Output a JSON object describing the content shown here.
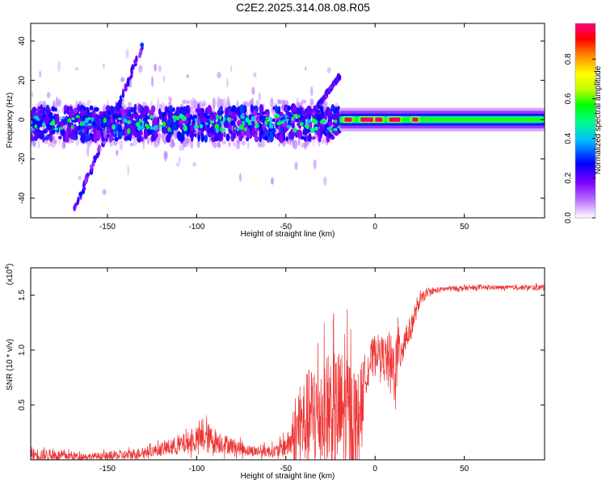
{
  "figure_title": "C2E2.2025.314.08.08.R05",
  "chart_data": [
    {
      "type": "heatmap",
      "title": "",
      "xlabel": "Height of straight line (km)",
      "ylabel": "Frequency (Hz)",
      "xlim": [
        -193,
        95
      ],
      "ylim": [
        -50,
        49
      ],
      "xticks": [
        -150,
        -100,
        -50,
        0,
        50
      ],
      "yticks": [
        -40,
        -20,
        0,
        20,
        40
      ],
      "colorbar": {
        "label": "Normalized spectral amplitude",
        "range": [
          0,
          0.98
        ],
        "ticks": [
          "0.0",
          "0.2",
          "0.4",
          "0.6",
          "0.8"
        ],
        "tick_values": [
          0,
          0.2,
          0.4,
          0.6,
          0.8
        ],
        "colors": [
          "#ffffff",
          "#c080ff",
          "#8000ff",
          "#0000ff",
          "#00c0ff",
          "#00ff80",
          "#00ff00",
          "#c0ff00",
          "#ffff00",
          "#ff8000",
          "#ff0000",
          "#ff0080"
        ]
      },
      "features": [
        {
          "kind": "scattered_band",
          "x_range": [
            -193,
            -20
          ],
          "freq_center": -2,
          "freq_halfwidth": 8,
          "peak_amplitude": 0.55
        },
        {
          "kind": "diagonal_streak",
          "x_range": [
            -168,
            -130
          ],
          "freq_range": [
            -45,
            38
          ],
          "peak_amplitude": 0.3
        },
        {
          "kind": "diagonal_streak",
          "x_range": [
            -35,
            -20
          ],
          "freq_range": [
            3,
            22
          ],
          "peak_amplitude": 0.25
        },
        {
          "kind": "continuous_band",
          "x_range": [
            -20,
            95
          ],
          "freq_center": 0,
          "freq_halfwidth": 3,
          "peak_amplitude": 0.95
        }
      ]
    },
    {
      "type": "line",
      "title": "",
      "xlabel": "Height of straight line (km)",
      "ylabel": "SNR (10 * v/v)",
      "yscale_label": "(x10",
      "yscale_exp": "4",
      "xlim": [
        -193,
        95
      ],
      "ylim": [
        0,
        1.75
      ],
      "xticks": [
        -150,
        -100,
        -50,
        0,
        50
      ],
      "yticks": [
        0.5,
        1.0,
        1.5
      ],
      "color": "#ee3333",
      "envelope": [
        {
          "x": -193,
          "base": 0.05,
          "noise": 0.12
        },
        {
          "x": -180,
          "base": 0.04,
          "noise": 0.1
        },
        {
          "x": -160,
          "base": 0.03,
          "noise": 0.06
        },
        {
          "x": -140,
          "base": 0.04,
          "noise": 0.1
        },
        {
          "x": -125,
          "base": 0.08,
          "noise": 0.1
        },
        {
          "x": -110,
          "base": 0.13,
          "noise": 0.18
        },
        {
          "x": -100,
          "base": 0.18,
          "noise": 0.22
        },
        {
          "x": -95,
          "base": 0.2,
          "noise": 0.3
        },
        {
          "x": -85,
          "base": 0.15,
          "noise": 0.18
        },
        {
          "x": -70,
          "base": 0.08,
          "noise": 0.1
        },
        {
          "x": -55,
          "base": 0.08,
          "noise": 0.12
        },
        {
          "x": -48,
          "base": 0.15,
          "noise": 0.25
        },
        {
          "x": -42,
          "base": 0.3,
          "noise": 0.8
        },
        {
          "x": -35,
          "base": 0.4,
          "noise": 1.0
        },
        {
          "x": -25,
          "base": 0.45,
          "noise": 1.1
        },
        {
          "x": -15,
          "base": 0.4,
          "noise": 1.25
        },
        {
          "x": -10,
          "base": 0.35,
          "noise": 0.9
        },
        {
          "x": -5,
          "base": 0.8,
          "noise": 0.4
        },
        {
          "x": 0,
          "base": 1.0,
          "noise": 0.3
        },
        {
          "x": 5,
          "base": 0.95,
          "noise": 0.35
        },
        {
          "x": 10,
          "base": 0.8,
          "noise": 0.7
        },
        {
          "x": 15,
          "base": 1.05,
          "noise": 0.4
        },
        {
          "x": 20,
          "base": 1.2,
          "noise": 0.2
        },
        {
          "x": 25,
          "base": 1.45,
          "noise": 0.12
        },
        {
          "x": 30,
          "base": 1.53,
          "noise": 0.06
        },
        {
          "x": 40,
          "base": 1.56,
          "noise": 0.05
        },
        {
          "x": 60,
          "base": 1.57,
          "noise": 0.04
        },
        {
          "x": 80,
          "base": 1.57,
          "noise": 0.04
        },
        {
          "x": 95,
          "base": 1.57,
          "noise": 0.06
        }
      ]
    }
  ]
}
